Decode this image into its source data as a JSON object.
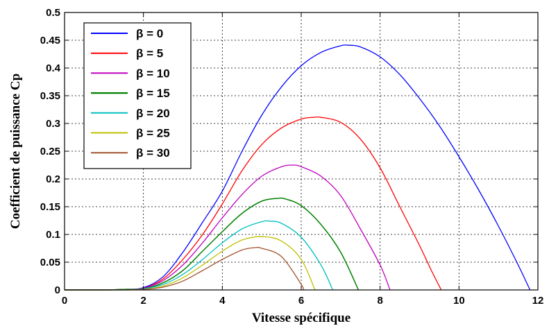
{
  "chart_data": {
    "type": "line",
    "title": "",
    "xlabel": "Vitesse spécifique",
    "ylabel": "Coefficient de puissance Cp",
    "xlim": [
      0,
      12
    ],
    "ylim": [
      0,
      0.5
    ],
    "xticks": [
      "0",
      "2",
      "4",
      "6",
      "8",
      "10",
      "12"
    ],
    "yticks": [
      "0",
      "0.05",
      "0.1",
      "0.15",
      "0.2",
      "0.25",
      "0.3",
      "0.35",
      "0.4",
      "0.45",
      "0.5"
    ],
    "grid": true,
    "legend_position": "top-left",
    "series": [
      {
        "name": "β = 0",
        "color": "#0000ff",
        "stroke_width": 1.3,
        "x": [
          0,
          1,
          1.5,
          2,
          2.5,
          3,
          3.5,
          4,
          4.5,
          5,
          5.5,
          6,
          6.5,
          7,
          7.2,
          7.5,
          8,
          8.5,
          9,
          9.5,
          10,
          10.5,
          11,
          11.5,
          11.8
        ],
        "y": [
          0,
          0,
          0.001,
          0.004,
          0.024,
          0.068,
          0.122,
          0.178,
          0.25,
          0.315,
          0.366,
          0.404,
          0.428,
          0.44,
          0.441,
          0.438,
          0.42,
          0.388,
          0.345,
          0.296,
          0.24,
          0.18,
          0.115,
          0.045,
          0
        ]
      },
      {
        "name": "β = 5",
        "color": "#ff0000",
        "stroke_width": 1.3,
        "x": [
          0,
          1,
          1.5,
          2,
          2.5,
          3,
          3.5,
          4,
          4.5,
          5,
          5.5,
          6,
          6.3,
          6.5,
          7,
          7.5,
          8,
          8.5,
          9,
          9.3,
          9.55
        ],
        "y": [
          0,
          0,
          0.001,
          0.003,
          0.02,
          0.055,
          0.1,
          0.155,
          0.215,
          0.262,
          0.292,
          0.308,
          0.311,
          0.311,
          0.302,
          0.272,
          0.22,
          0.15,
          0.08,
          0.035,
          0
        ]
      },
      {
        "name": "β = 10",
        "color": "#bf00bf",
        "stroke_width": 1.3,
        "x": [
          0,
          1,
          1.5,
          2,
          2.5,
          3,
          3.5,
          4,
          4.5,
          5,
          5.5,
          5.8,
          6,
          6.5,
          7,
          7.5,
          8,
          8.25
        ],
        "y": [
          0,
          0,
          0.001,
          0.003,
          0.017,
          0.045,
          0.085,
          0.13,
          0.172,
          0.205,
          0.222,
          0.225,
          0.222,
          0.205,
          0.17,
          0.11,
          0.045,
          0
        ]
      },
      {
        "name": "β = 15",
        "color": "#008000",
        "stroke_width": 1.5,
        "x": [
          0,
          1,
          1.5,
          2,
          2.5,
          3,
          3.5,
          4,
          4.5,
          5,
          5.4,
          5.6,
          6,
          6.5,
          7,
          7.45
        ],
        "y": [
          0,
          0,
          0.001,
          0.002,
          0.013,
          0.035,
          0.07,
          0.105,
          0.138,
          0.16,
          0.165,
          0.164,
          0.152,
          0.118,
          0.068,
          0
        ]
      },
      {
        "name": "β = 20",
        "color": "#00bfbf",
        "stroke_width": 1.3,
        "x": [
          0,
          1,
          1.5,
          2,
          2.5,
          3,
          3.5,
          4,
          4.5,
          5,
          5.2,
          5.5,
          6,
          6.5,
          6.8
        ],
        "y": [
          0,
          0,
          0,
          0.002,
          0.01,
          0.028,
          0.055,
          0.085,
          0.11,
          0.123,
          0.124,
          0.12,
          0.095,
          0.045,
          0
        ]
      },
      {
        "name": "β = 25",
        "color": "#bfbf00",
        "stroke_width": 1.3,
        "x": [
          0,
          1,
          1.5,
          2,
          2.5,
          3,
          3.5,
          4,
          4.5,
          5,
          5.5,
          6,
          6.35
        ],
        "y": [
          0,
          0,
          0,
          0.001,
          0.007,
          0.022,
          0.045,
          0.07,
          0.09,
          0.096,
          0.088,
          0.055,
          0
        ]
      },
      {
        "name": "β = 30",
        "color": "#a0522d",
        "stroke_width": 1.3,
        "x": [
          0,
          1,
          1.5,
          2,
          2.5,
          3,
          3.5,
          4,
          4.5,
          4.8,
          5,
          5.5,
          6,
          6.05
        ],
        "y": [
          0,
          0,
          0,
          0.001,
          0.005,
          0.016,
          0.035,
          0.055,
          0.072,
          0.076,
          0.075,
          0.06,
          0.01,
          0
        ]
      }
    ]
  }
}
